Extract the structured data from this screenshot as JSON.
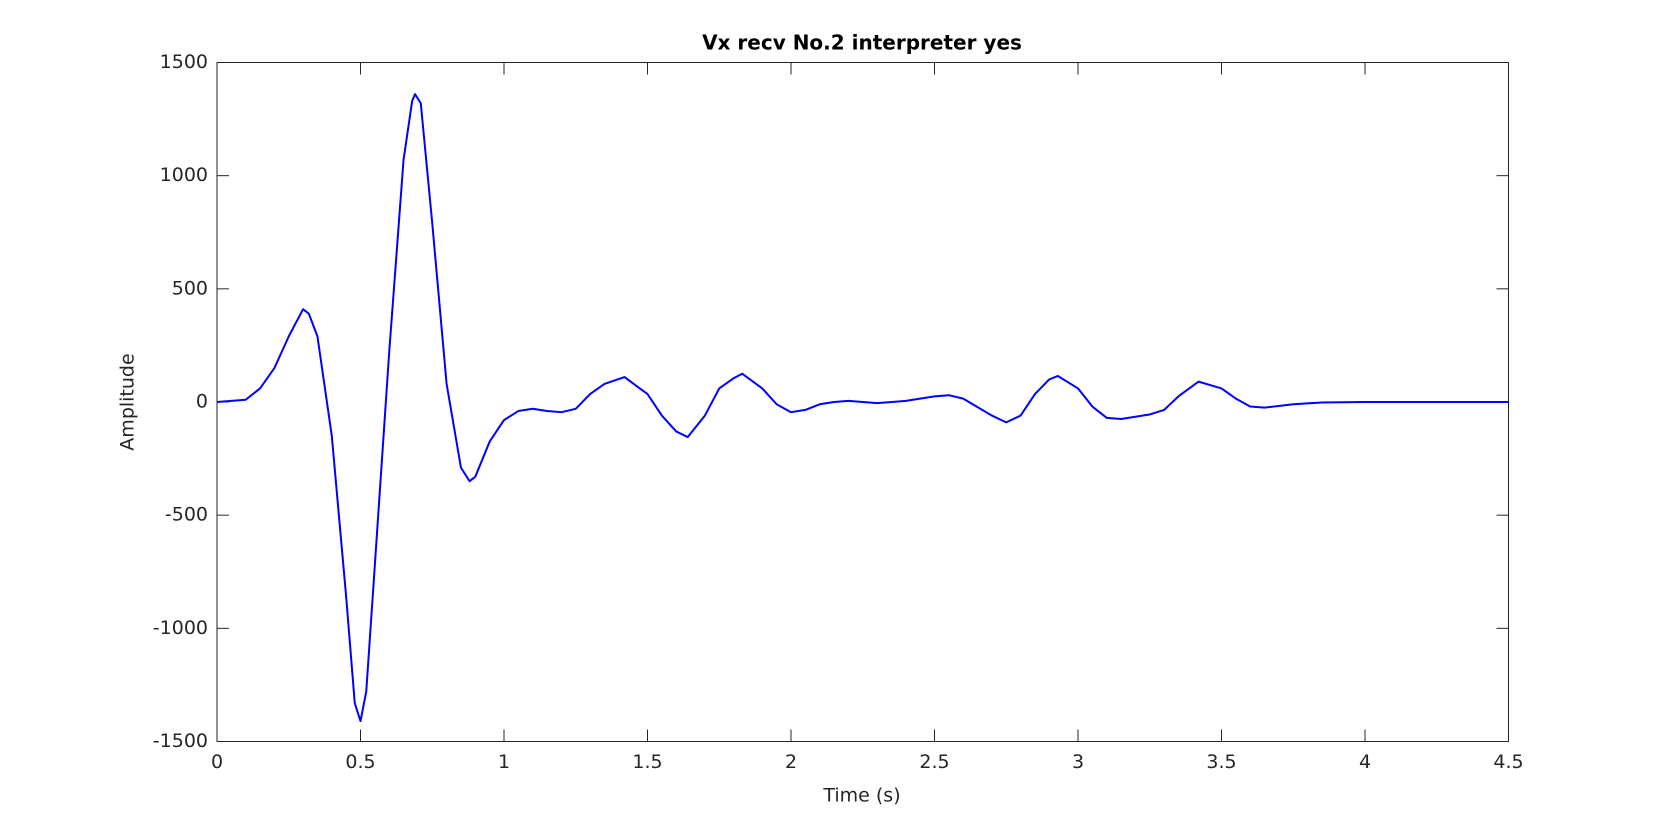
{
  "chart_data": {
    "type": "line",
    "title": "Vx recv No.2 interpreter yes",
    "x_label": "Time (s)",
    "y_label": "Amplitude",
    "xlim": [
      0,
      4.5
    ],
    "ylim": [
      -1500,
      1500
    ],
    "xticks": [
      0,
      0.5,
      1,
      1.5,
      2,
      2.5,
      3,
      3.5,
      4,
      4.5
    ],
    "yticks": [
      -1500,
      -1000,
      -500,
      0,
      500,
      1000,
      1500
    ],
    "grid": false,
    "x": [
      0,
      0.1,
      0.15,
      0.2,
      0.25,
      0.3,
      0.32,
      0.35,
      0.4,
      0.45,
      0.48,
      0.5,
      0.52,
      0.55,
      0.6,
      0.65,
      0.68,
      0.69,
      0.71,
      0.75,
      0.8,
      0.85,
      0.88,
      0.9,
      0.95,
      1.0,
      1.05,
      1.1,
      1.15,
      1.2,
      1.25,
      1.3,
      1.35,
      1.42,
      1.5,
      1.55,
      1.6,
      1.64,
      1.7,
      1.75,
      1.8,
      1.83,
      1.9,
      1.95,
      2.0,
      2.05,
      2.1,
      2.15,
      2.2,
      2.3,
      2.4,
      2.5,
      2.55,
      2.6,
      2.7,
      2.75,
      2.8,
      2.85,
      2.9,
      2.93,
      3.0,
      3.05,
      3.1,
      3.15,
      3.25,
      3.3,
      3.35,
      3.42,
      3.5,
      3.55,
      3.6,
      3.65,
      3.75,
      3.85,
      4.0,
      4.5
    ],
    "series": [
      {
        "name": "Vx",
        "color": "#0000ff",
        "values": [
          0,
          10,
          60,
          150,
          290,
          410,
          390,
          290,
          -150,
          -860,
          -1330,
          -1410,
          -1280,
          -720,
          220,
          1070,
          1330,
          1360,
          1320,
          790,
          80,
          -290,
          -350,
          -330,
          -175,
          -80,
          -40,
          -30,
          -40,
          -45,
          -30,
          35,
          80,
          110,
          35,
          -60,
          -130,
          -155,
          -60,
          60,
          105,
          125,
          60,
          -10,
          -45,
          -35,
          -10,
          0,
          5,
          -5,
          5,
          25,
          30,
          15,
          -60,
          -90,
          -60,
          35,
          100,
          115,
          60,
          -20,
          -70,
          -75,
          -55,
          -35,
          25,
          90,
          60,
          15,
          -20,
          -25,
          -10,
          -2,
          0,
          0
        ]
      }
    ]
  }
}
